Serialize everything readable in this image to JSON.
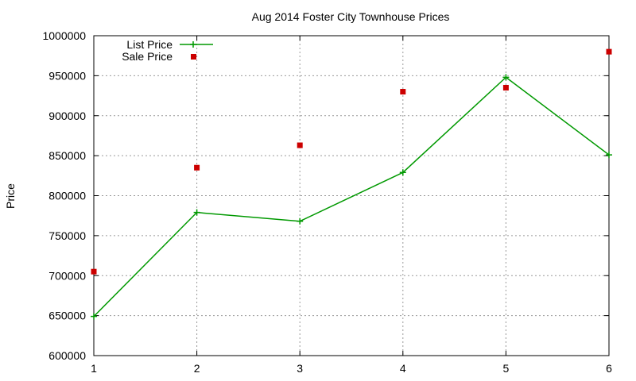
{
  "chart_data": {
    "type": "line",
    "title": "Aug 2014 Foster City Townhouse Prices",
    "xlabel": "",
    "ylabel": "Price",
    "x": [
      1,
      2,
      3,
      4,
      5,
      6
    ],
    "xlim": [
      1,
      6
    ],
    "ylim": [
      600000,
      1000000
    ],
    "xticks": [
      1,
      2,
      3,
      4,
      5,
      6
    ],
    "yticks": [
      600000,
      650000,
      700000,
      750000,
      800000,
      850000,
      900000,
      950000,
      1000000
    ],
    "grid": true,
    "legend_position": "top-left",
    "series": [
      {
        "name": "List Price",
        "style": "linespoints",
        "color": "#009900",
        "values": [
          649000,
          779000,
          768000,
          829000,
          948000,
          851000
        ]
      },
      {
        "name": "Sale Price",
        "style": "points",
        "color": "#cc0000",
        "values": [
          705000,
          835000,
          863000,
          930000,
          935000,
          980000
        ]
      }
    ]
  }
}
